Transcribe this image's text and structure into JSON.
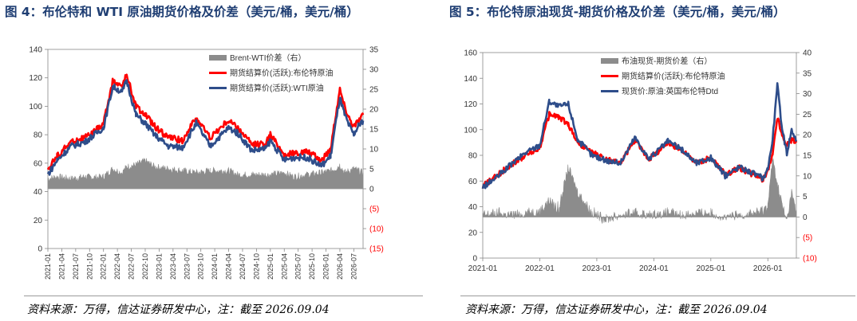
{
  "left": {
    "figure_title": "图 4：布伦特和 WTI 原油期货价格及价差（美元/桶，美元/桶）",
    "source": "资料来源：万得，信达证券研发中心，注：截至 2026.09.04"
  },
  "right": {
    "figure_title": "图 5：布伦特原油现货-期货价格及价差（美元/桶，美元/桶）",
    "source": "资料来源：万得，信达证券研发中心，注：截至 2026.09.04"
  },
  "colors": {
    "spread": "#8c8c8c",
    "red": "#ff0000",
    "blue": "#2e4d8a",
    "neg_label": "#ff0000"
  },
  "chart_data": [
    {
      "type": "line",
      "legend_position": "top-right",
      "grid": false,
      "x_unit": "month",
      "x_range": [
        "2021-01",
        "2026-09"
      ],
      "x_tick_labels": [
        "2021-01",
        "2021-04",
        "2021-07",
        "2021-10",
        "2022-01",
        "2022-04",
        "2022-07",
        "2022-10",
        "2023-01",
        "2023-04",
        "2023-07",
        "2023-10",
        "2024-01",
        "2024-04",
        "2024-07",
        "2024-10",
        "2025-01",
        "2025-04",
        "2025-07",
        "2025-10",
        "2026-01",
        "2026-04",
        "2026-07"
      ],
      "y_left": {
        "range": [
          0,
          140
        ],
        "ticks": [
          "0",
          "20",
          "40",
          "60",
          "80",
          "100",
          "120",
          "140"
        ]
      },
      "y_right": {
        "range": [
          -15,
          35
        ],
        "ticks": [
          "(15)",
          "(10)",
          "(5)",
          "0",
          "5",
          "10",
          "15",
          "20",
          "25",
          "30",
          "35"
        ]
      },
      "x": [
        "2021-01",
        "2021-03",
        "2021-06",
        "2021-09",
        "2021-11",
        "2022-01",
        "2022-03",
        "2022-05",
        "2022-06",
        "2022-08",
        "2022-10",
        "2022-12",
        "2023-03",
        "2023-06",
        "2023-09",
        "2023-12",
        "2024-04",
        "2024-06",
        "2024-09",
        "2024-12",
        "2025-01",
        "2025-04",
        "2025-06",
        "2025-09",
        "2025-12",
        "2026-02",
        "2026-03",
        "2026-04",
        "2026-05",
        "2026-06",
        "2026-07",
        "2026-08",
        "2026-09"
      ],
      "series": [
        {
          "name": "Brent-WTI价差（右）",
          "type": "area",
          "axis": "right",
          "color": "#8c8c8c",
          "values": [
            2.5,
            3.0,
            2.5,
            3.0,
            2.8,
            3.0,
            5.0,
            4.0,
            5.5,
            6.0,
            7.0,
            5.5,
            5.0,
            4.5,
            4.0,
            4.5,
            4.5,
            3.5,
            3.5,
            3.5,
            3.5,
            4.0,
            3.0,
            3.5,
            4.0,
            4.5,
            5.0,
            6.0,
            4.0,
            4.5,
            5.0,
            4.5,
            4.0
          ]
        },
        {
          "name": "期货结算价(活跃):布伦特原油",
          "type": "line",
          "axis": "left",
          "color": "#ff0000",
          "values": [
            56,
            65,
            75,
            78,
            82,
            88,
            118,
            114,
            122,
            100,
            94,
            86,
            78,
            76,
            92,
            78,
            90,
            85,
            73,
            74,
            80,
            66,
            67,
            68,
            62,
            70,
            92,
            112,
            100,
            92,
            86,
            90,
            94
          ]
        },
        {
          "name": "期货结算价(活跃):WTI原油",
          "type": "line",
          "axis": "left",
          "color": "#2e4d8a",
          "values": [
            52,
            62,
            72,
            75,
            80,
            85,
            114,
            110,
            118,
            94,
            88,
            80,
            72,
            71,
            88,
            72,
            85,
            81,
            69,
            70,
            76,
            62,
            64,
            64,
            58,
            65,
            86,
            106,
            94,
            86,
            80,
            86,
            90
          ]
        }
      ]
    },
    {
      "type": "line",
      "legend_position": "top-right",
      "grid": false,
      "x_unit": "month",
      "x_range": [
        "2021-01",
        "2026-07"
      ],
      "x_tick_labels": [
        "2021-01",
        "2022-01",
        "2023-01",
        "2024-01",
        "2025-01",
        "2026-01"
      ],
      "y_left": {
        "range": [
          0,
          160
        ],
        "ticks": [
          "0",
          "20",
          "40",
          "60",
          "80",
          "100",
          "120",
          "140",
          "160"
        ]
      },
      "y_right": {
        "range": [
          -10,
          40
        ],
        "ticks": [
          "(10)",
          "(5)",
          "0",
          "5",
          "10",
          "15",
          "20",
          "25",
          "30",
          "35",
          "40"
        ]
      },
      "x": [
        "2021-01",
        "2021-04",
        "2021-07",
        "2021-10",
        "2022-01",
        "2022-03",
        "2022-05",
        "2022-07",
        "2022-09",
        "2022-12",
        "2023-03",
        "2023-06",
        "2023-09",
        "2023-12",
        "2024-04",
        "2024-07",
        "2024-10",
        "2025-01",
        "2025-04",
        "2025-07",
        "2025-10",
        "2025-12",
        "2026-01",
        "2026-02",
        "2026-03",
        "2026-04",
        "2026-05",
        "2026-06",
        "2026-07"
      ],
      "series": [
        {
          "name": "布油现货-期货价差（右）",
          "type": "area",
          "axis": "right",
          "color": "#8c8c8c",
          "values": [
            0.5,
            1,
            0.5,
            1,
            1.5,
            4,
            2,
            12,
            6,
            1,
            -0.5,
            0.5,
            1,
            0.5,
            1,
            0.5,
            1,
            1,
            0,
            0.5,
            1,
            1.5,
            3,
            14,
            8,
            3,
            -1,
            6,
            1
          ]
        },
        {
          "name": "期货结算价(活跃):布伦特原油",
          "type": "line",
          "axis": "left",
          "color": "#ff0000",
          "values": [
            56,
            64,
            73,
            80,
            86,
            112,
            110,
            104,
            90,
            82,
            77,
            74,
            92,
            77,
            90,
            84,
            74,
            78,
            65,
            70,
            65,
            61,
            68,
            80,
            110,
            95,
            88,
            92,
            90
          ]
        },
        {
          "name": "现货价:原油:英国布伦特Dtd",
          "type": "line",
          "axis": "left",
          "color": "#2e4d8a",
          "values": [
            55,
            63,
            73,
            82,
            88,
            122,
            118,
            120,
            92,
            80,
            76,
            74,
            94,
            77,
            91,
            84,
            74,
            78,
            64,
            71,
            66,
            62,
            70,
            92,
            135,
            100,
            82,
            100,
            92
          ]
        }
      ]
    }
  ]
}
